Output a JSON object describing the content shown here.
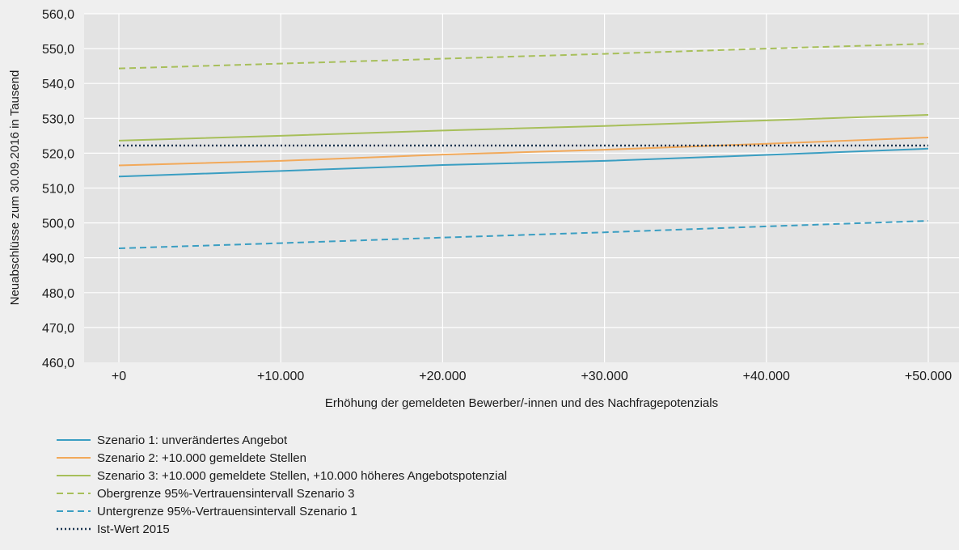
{
  "chart_data": {
    "type": "line",
    "title": "",
    "xlabel": "Erhöhung der gemeldeten Bewerber/-innen und des Nachfragepotenzials",
    "ylabel": "Neuabschlüsse zum 30.09.2016 in Tausend",
    "categories": [
      "+0",
      "+10.000",
      "+20.000",
      "+30.000",
      "+40.000",
      "+50.000"
    ],
    "y_ticks": [
      "460,0",
      "470,0",
      "480,0",
      "490,0",
      "500,0",
      "510,0",
      "520,0",
      "530,0",
      "540,0",
      "550,0",
      "560,0"
    ],
    "ylim": [
      460,
      560
    ],
    "grid": true,
    "legend_position": "bottom-left",
    "series": [
      {
        "name": "Szenario 1: unverändertes Angebot",
        "color": "#3a9ec2",
        "dash": "solid",
        "values": [
          513.3,
          514.9,
          516.6,
          517.8,
          519.5,
          521.3
        ]
      },
      {
        "name": "Szenario 2: +10.000 gemeldete Stellen",
        "color": "#f2a95a",
        "dash": "solid",
        "values": [
          516.5,
          517.8,
          519.6,
          521.0,
          522.7,
          524.5
        ]
      },
      {
        "name": "Szenario 3: +10.000 gemeldete Stellen, +10.000 höheres Angebotspotenzial",
        "color": "#a7bf5a",
        "dash": "solid",
        "values": [
          523.6,
          525.0,
          526.5,
          527.8,
          529.4,
          531.0
        ]
      },
      {
        "name": "Obergrenze 95%-Vertrauensintervall Szenario 3",
        "color": "#a7bf5a",
        "dash": "dashed",
        "values": [
          544.3,
          545.7,
          547.1,
          548.5,
          550.0,
          551.4
        ]
      },
      {
        "name": "Untergrenze 95%-Vertrauensintervall Szenario 1",
        "color": "#3a9ec2",
        "dash": "dashed",
        "values": [
          492.7,
          494.2,
          495.8,
          497.3,
          499.0,
          500.6
        ]
      },
      {
        "name": "Ist-Wert 2015",
        "color": "#1b3550",
        "dash": "dotted",
        "values": [
          522.2,
          522.2,
          522.2,
          522.2,
          522.2,
          522.2
        ]
      }
    ]
  }
}
